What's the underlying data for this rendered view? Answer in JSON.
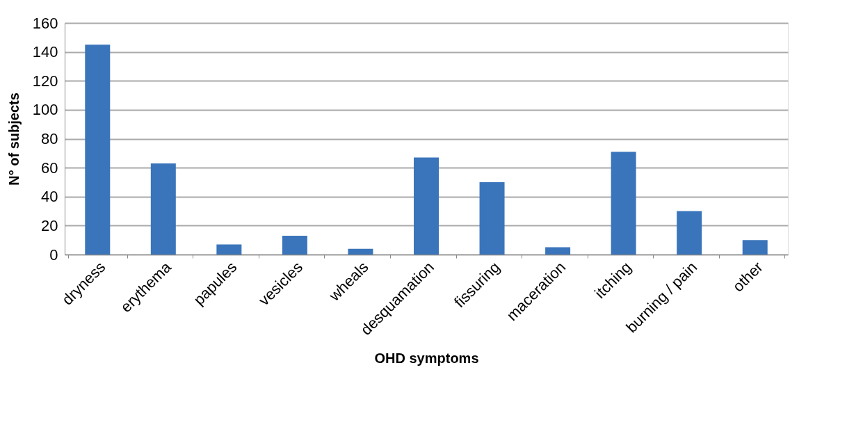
{
  "chart_data": {
    "type": "bar",
    "xlabel": "OHD symptoms",
    "ylabel": "N° of subjects",
    "categories": [
      "dryness",
      "erythema",
      "papules",
      "vesicles",
      "wheals",
      "desquamation",
      "fissuring",
      "maceration",
      "itching",
      "burning / pain",
      "other"
    ],
    "values": [
      145,
      63,
      7,
      13,
      4,
      67,
      50,
      5,
      71,
      30,
      10
    ],
    "color": "#3a75bb",
    "ylim": [
      0,
      160
    ],
    "yticks": [
      0,
      20,
      40,
      60,
      80,
      100,
      120,
      140,
      160
    ],
    "grid": "y"
  }
}
